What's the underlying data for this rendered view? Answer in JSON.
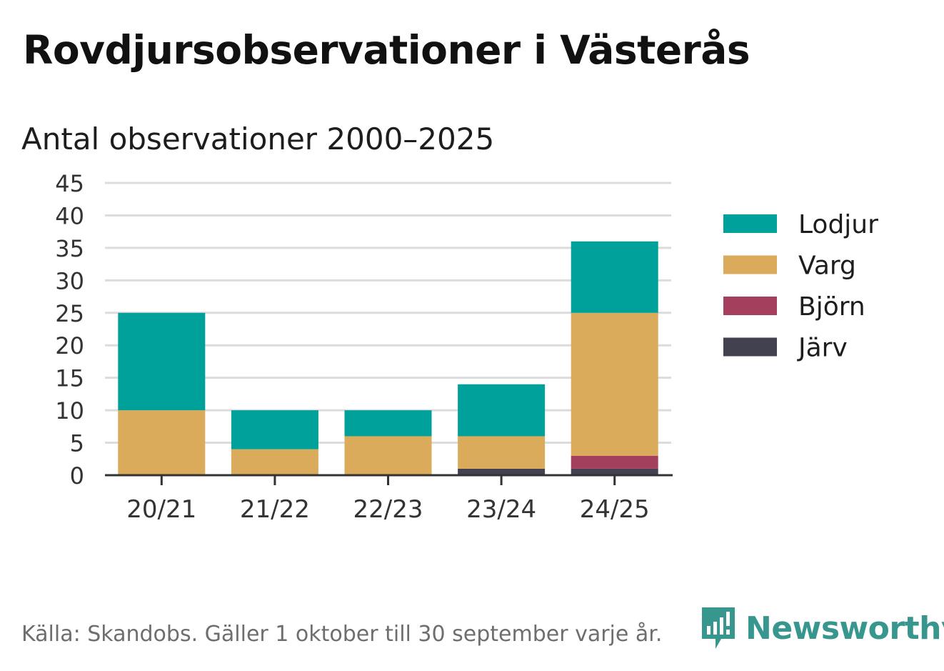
{
  "chart_data": {
    "type": "bar",
    "stacked": true,
    "title": "Rovdjursobservationer i Västerås",
    "subtitle": "Antal observationer 2000–2025",
    "categories": [
      "20/21",
      "21/22",
      "22/23",
      "23/24",
      "24/25"
    ],
    "series": [
      {
        "name": "Järv",
        "color": "#41414f",
        "values": [
          0,
          0,
          0,
          1,
          1
        ]
      },
      {
        "name": "Björn",
        "color": "#a4405d",
        "values": [
          0,
          0,
          0,
          0,
          2
        ]
      },
      {
        "name": "Varg",
        "color": "#d9ab5a",
        "values": [
          10,
          4,
          6,
          5,
          22
        ]
      },
      {
        "name": "Lodjur",
        "color": "#00a19a",
        "values": [
          15,
          6,
          4,
          8,
          11
        ]
      }
    ],
    "legend_order": [
      "Lodjur",
      "Varg",
      "Björn",
      "Järv"
    ],
    "legend_position": "right",
    "ylim": [
      0,
      45
    ],
    "yticks": [
      "0",
      "5",
      "10",
      "15",
      "20",
      "25",
      "30",
      "35",
      "40",
      "45"
    ],
    "xlabel": "",
    "ylabel": "",
    "grid": true
  },
  "footer": {
    "source": "Källa: Skandobs. Gäller 1 oktober till 30 september varje år.",
    "brand": "Newsworthy",
    "brand_color": "#37968d"
  }
}
